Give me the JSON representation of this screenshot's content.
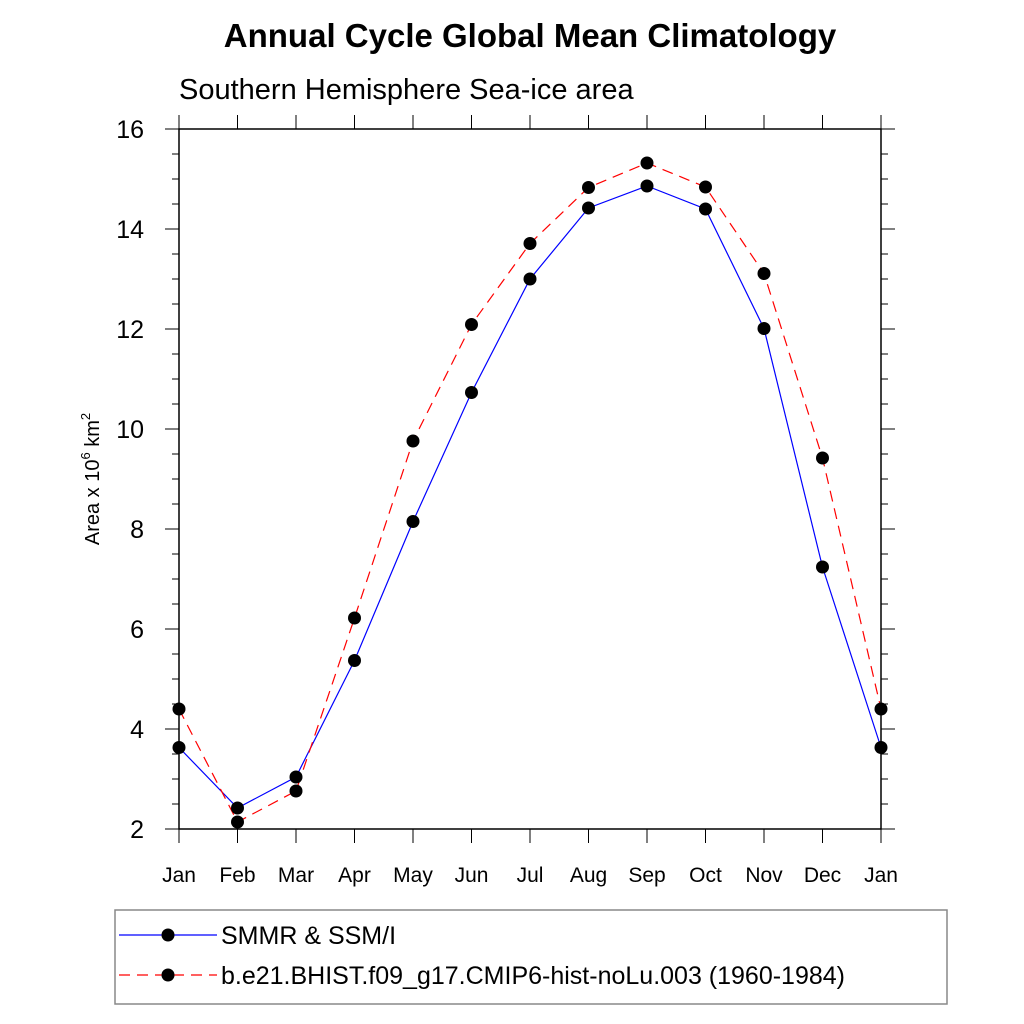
{
  "chart_data": {
    "type": "line",
    "title": "Annual Cycle Global Mean Climatology",
    "subtitle": "Southern Hemisphere Sea-ice area",
    "ylabel_main": "Area x 10",
    "ylabel_sup1": "6",
    "ylabel_unit": " km",
    "ylabel_sup2": "2",
    "ylim": [
      2,
      16
    ],
    "yticks": [
      "2",
      "4",
      "6",
      "8",
      "10",
      "12",
      "14",
      "16"
    ],
    "categories": [
      "Jan",
      "Feb",
      "Mar",
      "Apr",
      "May",
      "Jun",
      "Jul",
      "Aug",
      "Sep",
      "Oct",
      "Nov",
      "Dec",
      "Jan"
    ],
    "series": [
      {
        "name": "SMMR & SSM/I",
        "color": "#0000ff",
        "dash": "solid",
        "values": [
          3.63,
          2.42,
          3.04,
          5.37,
          8.15,
          10.73,
          13.0,
          14.42,
          14.86,
          14.4,
          12.01,
          7.24,
          3.63
        ]
      },
      {
        "name": "b.e21.BHIST.f09_g17.CMIP6-hist-noLu.003 (1960-1984)",
        "color": "#ff0000",
        "dash": "dashed",
        "values": [
          4.4,
          2.14,
          2.76,
          6.22,
          9.76,
          12.09,
          13.71,
          14.83,
          15.32,
          14.84,
          13.11,
          9.42,
          4.4
        ]
      }
    ],
    "grid": false,
    "legend_position": "bottom"
  }
}
